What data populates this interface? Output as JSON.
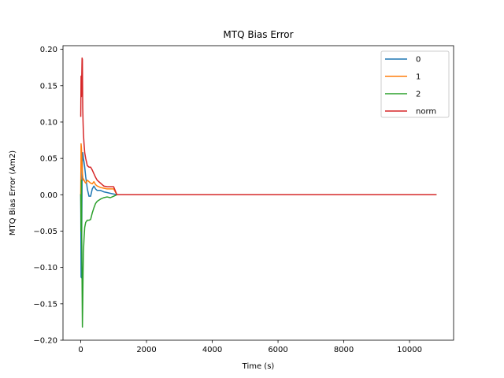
{
  "chart_data": {
    "type": "line",
    "title": "MTQ Bias Error",
    "xlabel": "Time (s)",
    "ylabel": "MTQ Bias Error (Am2)",
    "xlim": [
      -540,
      11340
    ],
    "ylim": [
      -0.2,
      0.205
    ],
    "xticks": [
      0,
      2000,
      4000,
      6000,
      8000,
      10000
    ],
    "xtick_labels": [
      "0",
      "2000",
      "4000",
      "6000",
      "8000",
      "10000"
    ],
    "yticks": [
      -0.2,
      -0.15,
      -0.1,
      -0.05,
      0.0,
      0.05,
      0.1,
      0.15,
      0.2
    ],
    "ytick_labels": [
      "−0.20",
      "−0.15",
      "−0.10",
      "−0.05",
      "0.00",
      "0.05",
      "0.10",
      "0.15",
      "0.20"
    ],
    "grid": false,
    "legend_position": "top-right",
    "series": [
      {
        "name": "0",
        "color": "#1f77b4",
        "x": [
          0,
          10,
          20,
          30,
          40,
          50,
          60,
          70,
          80,
          100,
          120,
          150,
          200,
          250,
          300,
          350,
          400,
          450,
          500,
          600,
          700,
          800,
          900,
          1000,
          1100,
          1200,
          10800
        ],
        "y": [
          0.0,
          -0.113,
          -0.114,
          -0.05,
          0.02,
          0.045,
          0.058,
          0.055,
          0.05,
          0.045,
          0.038,
          0.025,
          0.008,
          -0.002,
          -0.002,
          0.008,
          0.012,
          0.008,
          0.006,
          0.006,
          0.004,
          0.003,
          0.002,
          0.001,
          0.0,
          0.0,
          0.0
        ]
      },
      {
        "name": "1",
        "color": "#ff7f0e",
        "x": [
          0,
          10,
          20,
          30,
          40,
          50,
          60,
          70,
          80,
          100,
          120,
          150,
          200,
          250,
          300,
          350,
          400,
          450,
          500,
          600,
          700,
          800,
          900,
          1000,
          1100,
          1200,
          10800
        ],
        "y": [
          0.0,
          0.07,
          0.065,
          0.055,
          0.04,
          0.03,
          0.025,
          0.02,
          0.022,
          0.02,
          0.018,
          0.016,
          0.02,
          0.018,
          0.016,
          0.015,
          0.018,
          0.014,
          0.012,
          0.01,
          0.009,
          0.008,
          0.008,
          0.008,
          0.0,
          0.0,
          0.0
        ]
      },
      {
        "name": "2",
        "color": "#2ca02c",
        "x": [
          0,
          10,
          20,
          30,
          40,
          50,
          60,
          70,
          80,
          100,
          120,
          150,
          200,
          250,
          300,
          350,
          400,
          450,
          500,
          600,
          700,
          800,
          900,
          1000,
          1100,
          1200,
          10800
        ],
        "y": [
          0.0,
          -0.05,
          0.02,
          -0.06,
          -0.12,
          -0.182,
          -0.15,
          -0.11,
          -0.08,
          -0.06,
          -0.045,
          -0.038,
          -0.035,
          -0.035,
          -0.034,
          -0.025,
          -0.018,
          -0.012,
          -0.009,
          -0.006,
          -0.004,
          -0.003,
          -0.004,
          -0.002,
          0.0,
          0.0,
          0.0
        ]
      },
      {
        "name": "norm",
        "color": "#d62728",
        "x": [
          0,
          10,
          20,
          30,
          40,
          50,
          60,
          70,
          80,
          100,
          120,
          150,
          200,
          250,
          300,
          350,
          400,
          450,
          500,
          600,
          700,
          800,
          900,
          1000,
          1100,
          1200,
          10800
        ],
        "y": [
          0.108,
          0.163,
          0.135,
          0.16,
          0.188,
          0.186,
          0.12,
          0.1,
          0.085,
          0.07,
          0.058,
          0.05,
          0.04,
          0.038,
          0.038,
          0.034,
          0.029,
          0.024,
          0.02,
          0.016,
          0.012,
          0.011,
          0.011,
          0.011,
          0.0,
          0.0,
          0.0
        ]
      }
    ]
  }
}
